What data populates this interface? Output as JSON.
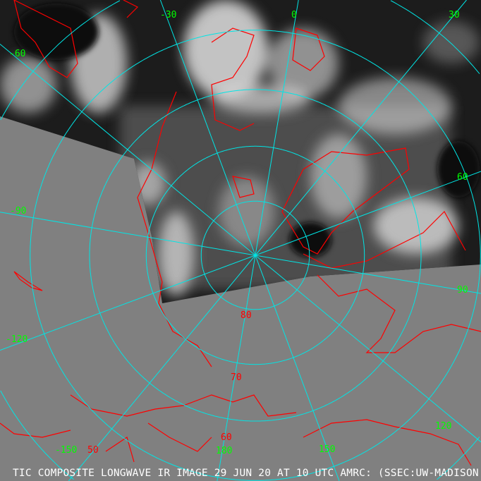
{
  "caption": "TIC COMPOSITE LONGWAVE IR IMAGE 29 JUN 20 AT 10 UTC AMRC: (SSEC:UW-MADISON",
  "projection": "polar-stereographic-north",
  "colors": {
    "background_no_data": "#808080",
    "graticule": "#00e5e5",
    "coastline": "#ff0000",
    "longitude_label": "#00ff00",
    "latitude_label": "#ff0000",
    "caption": "#ffffff"
  },
  "latitude_labels": [
    "80",
    "70",
    "60",
    "50"
  ],
  "longitude_labels": [
    "0",
    "30",
    "60",
    "90",
    "120",
    "150",
    "180",
    "-150",
    "-120",
    "-90",
    "-60",
    "-30"
  ]
}
